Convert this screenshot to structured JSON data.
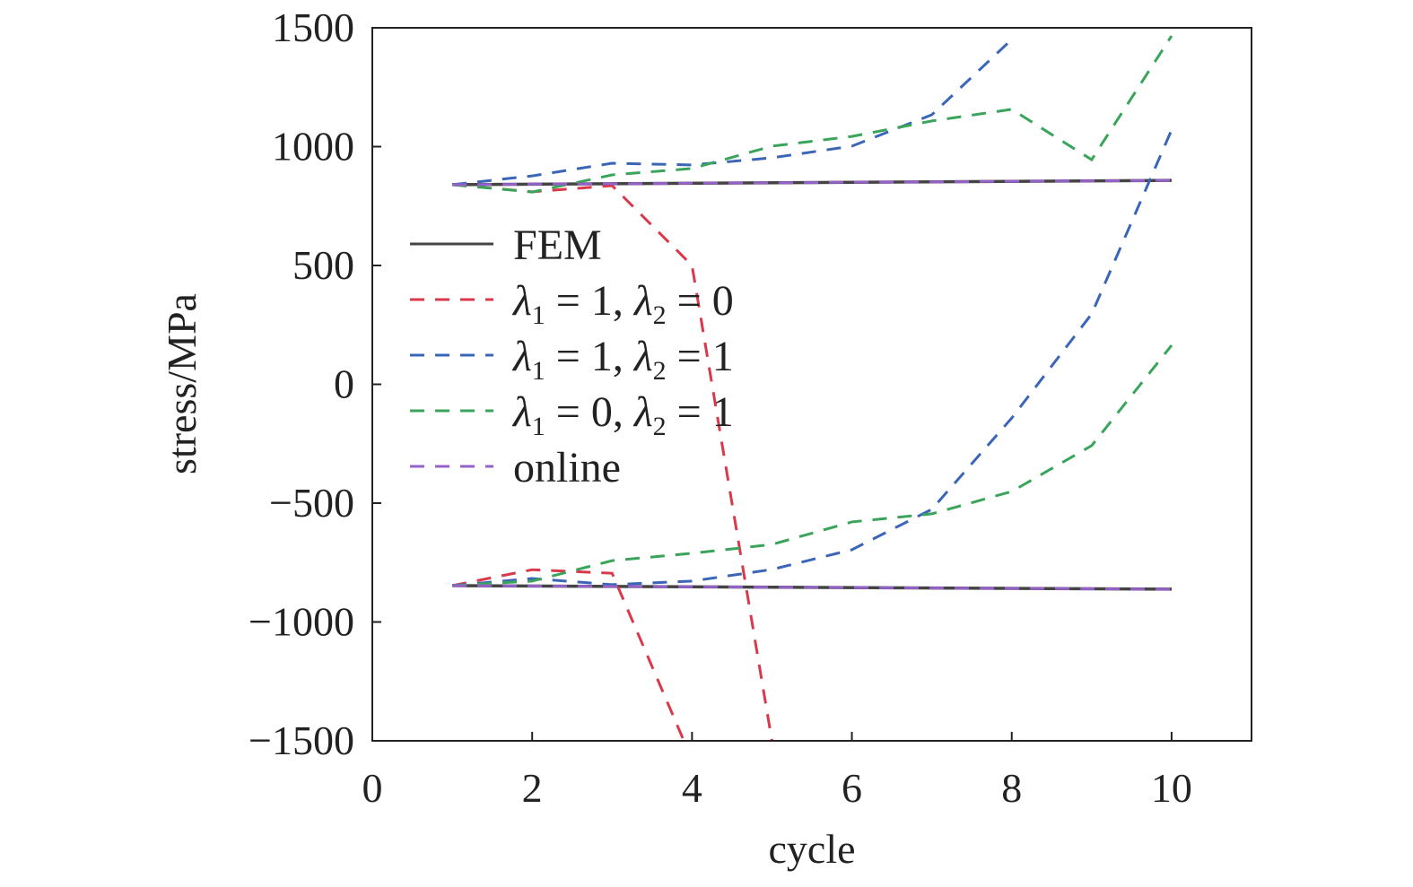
{
  "chart_data": {
    "type": "line",
    "title": "",
    "xlabel": "cycle",
    "ylabel": "stress/MPa",
    "xlim": [
      0,
      11
    ],
    "ylim": [
      -1500,
      1500
    ],
    "xticks": [
      0,
      2,
      4,
      6,
      8,
      10
    ],
    "yticks": [
      -1500,
      -1000,
      -500,
      0,
      500,
      1000,
      1500
    ],
    "xtick_labels": [
      "0",
      "2",
      "4",
      "6",
      "8",
      "10"
    ],
    "ytick_labels": [
      "−1500",
      "−1000",
      "−500",
      "0",
      "500",
      "1000",
      "1500"
    ],
    "grid": false,
    "legend_placement": "center-left",
    "series": [
      {
        "name": "FEM",
        "legend_label": "FEM",
        "color": "#444444",
        "dash": false,
        "branches": [
          {
            "x": [
              1,
              10
            ],
            "y": [
              840,
              858
            ]
          },
          {
            "x": [
              1,
              10
            ],
            "y": [
              -847,
              -862
            ]
          }
        ]
      },
      {
        "name": "λ1 = 1, λ2 = 0",
        "legend_label": {
          "a": "λ",
          "s1": "1",
          "mid": " = 1, ",
          "b": "λ",
          "s2": "2",
          "end": " = 0"
        },
        "color": "#d9394a",
        "dash": true,
        "branches": [
          {
            "x": [
              1,
              2,
              3,
              4,
              5
            ],
            "y": [
              840,
              810,
              836,
              500,
              -1500
            ]
          },
          {
            "x": [
              1,
              2,
              3,
              4
            ],
            "y": [
              -847,
              -780,
              -795,
              -1580
            ]
          }
        ]
      },
      {
        "name": "λ1 = 1, λ2 = 1",
        "legend_label": {
          "a": "λ",
          "s1": "1",
          "mid": " = 1, ",
          "b": "λ",
          "s2": "2",
          "end": " = 1"
        },
        "color": "#3b66b8",
        "dash": true,
        "branches": [
          {
            "x": [
              1,
              2,
              3,
              4,
              5,
              6,
              7,
              8
            ],
            "y": [
              840,
              877,
              930,
              923,
              953,
              1002,
              1134,
              1451
            ]
          },
          {
            "x": [
              1,
              2,
              3,
              4,
              5,
              6,
              7,
              8,
              9,
              10
            ],
            "y": [
              -847,
              -817,
              -843,
              -828,
              -779,
              -696,
              -526,
              -142,
              296,
              1070
            ]
          }
        ]
      },
      {
        "name": "λ1 = 0, λ2 = 1",
        "legend_label": {
          "a": "λ",
          "s1": "1",
          "mid": " = 0, ",
          "b": "λ",
          "s2": "2",
          "end": " = 1"
        },
        "color": "#3aa55a",
        "dash": true,
        "branches": [
          {
            "x": [
              1,
              2,
              3,
              4,
              5,
              6,
              7,
              8,
              9,
              10
            ],
            "y": [
              840,
              809,
              881,
              908,
              1002,
              1043,
              1108,
              1157,
              945,
              1466
            ]
          },
          {
            "x": [
              1,
              2,
              3,
              4,
              5,
              6,
              7,
              8,
              9,
              10
            ],
            "y": [
              -847,
              -828,
              -742,
              -711,
              -674,
              -579,
              -545,
              -451,
              -258,
              164
            ]
          }
        ]
      },
      {
        "name": "online",
        "legend_label": "online",
        "color": "#9461c9",
        "dash": true,
        "branches": [
          {
            "x": [
              1,
              10
            ],
            "y": [
              840,
              858
            ]
          },
          {
            "x": [
              1,
              10
            ],
            "y": [
              -847,
              -862
            ]
          }
        ]
      }
    ]
  }
}
